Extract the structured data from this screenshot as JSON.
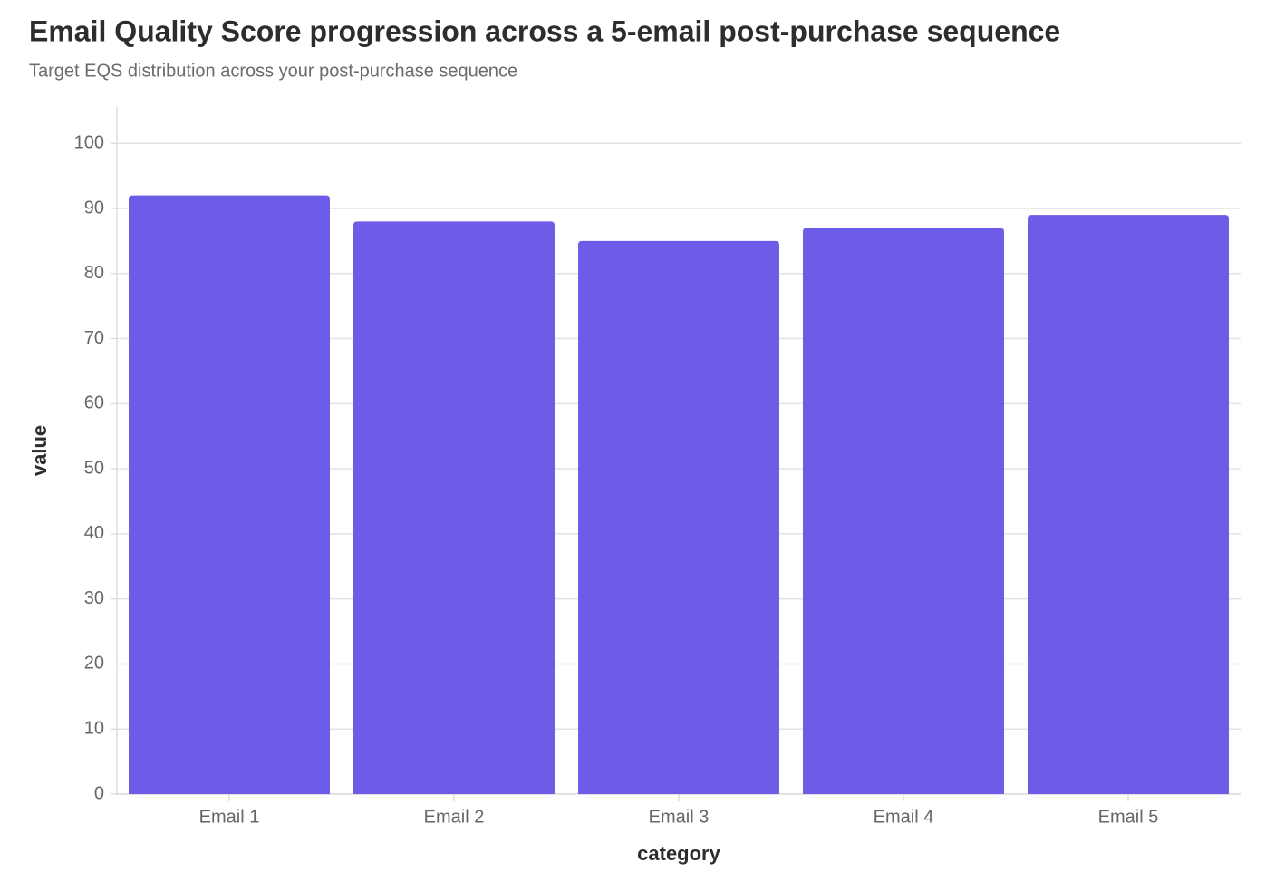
{
  "chart_data": {
    "type": "bar",
    "title": "Email Quality Score progression across a 5-email post-purchase sequence",
    "subtitle": "Target EQS distribution across your post-purchase sequence",
    "x_label": "category",
    "y_label": "value",
    "categories": [
      "Email 1",
      "Email 2",
      "Email 3",
      "Email 4",
      "Email 5"
    ],
    "values": [
      92,
      88,
      85,
      87,
      89
    ],
    "color": "#6c5ce7",
    "ylim": [
      0,
      105.6
    ],
    "yticks": [
      0,
      10,
      20,
      30,
      40,
      50,
      60,
      70,
      80,
      90,
      100
    ],
    "grid": true
  }
}
